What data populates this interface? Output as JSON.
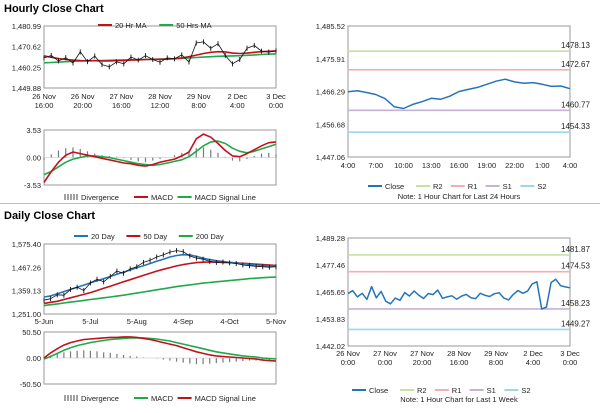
{
  "hourly": {
    "title": "Hourly Close Chart",
    "price_chart": {
      "type": "line",
      "ylim": [
        1449.88,
        1480.99
      ],
      "yticks": [
        "1,480.99",
        "1,470.62",
        "1,460.25",
        "1,449.88"
      ],
      "xticks": [
        [
          "26 Nov",
          "16:00"
        ],
        [
          "26 Nov",
          "20:00"
        ],
        [
          "27 Nov",
          "16:00"
        ],
        [
          "28 Nov",
          "12:00"
        ],
        [
          "29 Nov",
          "8:00"
        ],
        [
          "2 Dec",
          "4:00"
        ],
        [
          "3 Dec",
          "0:00"
        ]
      ],
      "legend": [
        "20 Hr MA",
        "50 Hrs MA"
      ],
      "series": [
        {
          "name": "Close",
          "values": [
            1465.0,
            1466.2,
            1463.5,
            1465.1,
            1462.4,
            1468.0,
            1463.1,
            1465.9,
            1461.6,
            1460.5,
            1463.0,
            1462.0,
            1465.4,
            1463.9,
            1466.1,
            1464.2,
            1462.8,
            1465.0,
            1464.5,
            1466.5,
            1462.9,
            1472.5,
            1473.0,
            1469.8,
            1472.1,
            1466.2,
            1462.0,
            1464.2,
            1469.8,
            1471.2,
            1468.4,
            1467.9,
            1468.5
          ]
        },
        {
          "name": "20 Hr MA",
          "values": [
            1466.0,
            1465.3,
            1464.7,
            1464.2,
            1463.9,
            1463.7,
            1463.6,
            1463.6,
            1463.5,
            1463.5,
            1463.6,
            1463.7,
            1463.9,
            1464.0,
            1464.2,
            1464.3,
            1464.3,
            1464.4,
            1464.6,
            1465.0,
            1465.6,
            1466.4,
            1467.2,
            1467.8,
            1468.1,
            1468.0,
            1467.4,
            1467.2,
            1467.4,
            1467.8,
            1468.1,
            1468.3,
            1468.5
          ]
        },
        {
          "name": "50 Hrs MA",
          "values": [
            1462.5,
            1462.7,
            1462.9,
            1463.1,
            1463.3,
            1463.4,
            1463.5,
            1463.6,
            1463.7,
            1463.8,
            1463.9,
            1464.0,
            1464.0,
            1464.1,
            1464.2,
            1464.3,
            1464.4,
            1464.5,
            1464.6,
            1464.8,
            1465.0,
            1465.2,
            1465.4,
            1465.6,
            1465.8,
            1465.9,
            1466.0,
            1466.1,
            1466.3,
            1466.5,
            1466.7,
            1466.9,
            1467.0
          ]
        }
      ]
    },
    "macd_chart": {
      "type": "line",
      "ylim": [
        -3.53,
        3.53
      ],
      "yticks": [
        "3.53",
        "0.00",
        "-3.53"
      ],
      "legend": [
        "Divergence",
        "MACD",
        "MACD Signal Line"
      ],
      "divergence": [
        -0.3,
        0.4,
        0.9,
        1.2,
        1.3,
        1.1,
        0.8,
        0.5,
        0.3,
        0.2,
        0.1,
        -0.1,
        -0.3,
        -0.5,
        -0.6,
        -0.4,
        -0.2,
        0.0,
        0.3,
        0.6,
        0.9,
        1.2,
        1.3,
        1.0,
        0.6,
        0.1,
        -0.4,
        -0.5,
        -0.2,
        0.2,
        0.5,
        0.6,
        0.4
      ],
      "macd": [
        -3.2,
        -1.8,
        -0.6,
        0.3,
        0.7,
        0.5,
        0.3,
        0.1,
        -0.1,
        -0.3,
        -0.5,
        -0.7,
        -0.8,
        -1.0,
        -1.1,
        -0.9,
        -0.6,
        -0.4,
        -0.2,
        0.2,
        0.7,
        2.4,
        3.0,
        2.6,
        1.8,
        0.9,
        0.2,
        0.1,
        0.5,
        1.0,
        1.5,
        1.9,
        2.0
      ],
      "signal": [
        -2.2,
        -1.8,
        -1.2,
        -0.6,
        -0.2,
        0.0,
        0.2,
        0.2,
        0.1,
        0.0,
        -0.2,
        -0.4,
        -0.6,
        -0.8,
        -0.9,
        -1.0,
        -0.9,
        -0.7,
        -0.5,
        -0.3,
        0.1,
        0.8,
        1.5,
        2.0,
        2.1,
        1.8,
        1.2,
        0.8,
        0.6,
        0.8,
        1.1,
        1.4,
        1.7
      ]
    },
    "pivot_chart": {
      "type": "line",
      "ylim": [
        1447.06,
        1485.52
      ],
      "yticks": [
        "1,485.52",
        "1,475.91",
        "1,466.29",
        "1,456.68",
        "1,447.06"
      ],
      "xticks": [
        "4:00",
        "7:00",
        "10:00",
        "13:00",
        "16:00",
        "19:00",
        "22:00",
        "1:00",
        "4:00"
      ],
      "levels": [
        {
          "name": "R2",
          "value": 1478.13,
          "label": "1478.13",
          "color": "#c9dfa5"
        },
        {
          "name": "R1",
          "value": 1472.67,
          "label": "1472.67",
          "color": "#f1b0b3"
        },
        {
          "name": "S1",
          "value": 1460.77,
          "label": "1460.77",
          "color": "#c7b1d6"
        },
        {
          "name": "S2",
          "value": 1454.33,
          "label": "1454.33",
          "color": "#9bd8ea"
        }
      ],
      "close": [
        1466.2,
        1466.5,
        1466.0,
        1465.4,
        1464.2,
        1461.8,
        1461.3,
        1462.5,
        1463.3,
        1464.3,
        1464.0,
        1464.9,
        1466.3,
        1466.9,
        1467.5,
        1468.4,
        1469.3,
        1469.9,
        1469.1,
        1468.7,
        1468.9,
        1468.4,
        1467.8,
        1467.9,
        1467.1
      ],
      "legend": [
        "Close",
        "R2",
        "R1",
        "S1",
        "S2"
      ],
      "note": "Note: 1 Hour Chart for Last 24 Hours"
    }
  },
  "daily": {
    "title": "Daily Close Chart",
    "price_chart": {
      "type": "line",
      "ylim": [
        1251.0,
        1575.4
      ],
      "yticks": [
        "1,575.40",
        "1,467.26",
        "1,359.13",
        "1,251.00"
      ],
      "xticks": [
        "5-Jun",
        "5-Jul",
        "5-Aug",
        "4-Sep",
        "4-Oct",
        "5-Nov"
      ],
      "legend": [
        "20 Day",
        "50 Day",
        "200 Day"
      ],
      "close": [
        1315,
        1322,
        1340,
        1338,
        1365,
        1375,
        1360,
        1395,
        1412,
        1400,
        1425,
        1450,
        1440,
        1460,
        1470,
        1490,
        1500,
        1515,
        1525,
        1538,
        1545,
        1540,
        1520,
        1510,
        1505,
        1495,
        1490,
        1492,
        1488,
        1485,
        1478,
        1475,
        1472,
        1470,
        1468,
        1470
      ],
      "ma20": [
        1330,
        1335,
        1345,
        1355,
        1365,
        1375,
        1385,
        1395,
        1405,
        1415,
        1425,
        1435,
        1445,
        1455,
        1465,
        1475,
        1485,
        1495,
        1505,
        1515,
        1522,
        1526,
        1525,
        1518,
        1510,
        1503,
        1498,
        1494,
        1490,
        1487,
        1484,
        1481,
        1478,
        1476,
        1474,
        1473
      ],
      "ma50": [
        1300,
        1305,
        1310,
        1318,
        1326,
        1334,
        1342,
        1350,
        1360,
        1370,
        1380,
        1390,
        1400,
        1410,
        1420,
        1430,
        1440,
        1450,
        1458,
        1466,
        1474,
        1480,
        1485,
        1489,
        1491,
        1492,
        1491,
        1490,
        1489,
        1488,
        1486,
        1484,
        1482,
        1480,
        1478,
        1476
      ],
      "ma200": [
        1290,
        1294,
        1298,
        1302,
        1306,
        1310,
        1314,
        1318,
        1322,
        1326,
        1330,
        1334,
        1338,
        1343,
        1348,
        1353,
        1358,
        1363,
        1368,
        1373,
        1378,
        1382,
        1386,
        1390,
        1394,
        1397,
        1400,
        1403,
        1406,
        1409,
        1412,
        1415,
        1417,
        1419,
        1421,
        1422
      ]
    },
    "macd_chart": {
      "type": "line",
      "ylim": [
        -50.5,
        50.5
      ],
      "yticks": [
        "50.50",
        "0.00",
        "-50.50"
      ],
      "legend": [
        "Divergence",
        "MACD",
        "MACD Signal Line"
      ],
      "divergence": [
        2,
        5,
        8,
        11,
        13,
        14,
        15,
        14,
        13,
        11,
        10,
        8,
        6,
        4,
        3,
        1,
        0,
        -1,
        -3,
        -5,
        -7,
        -9,
        -11,
        -12,
        -12,
        -11,
        -10,
        -9,
        -8,
        -7,
        -6,
        -5,
        -5,
        -4,
        -4,
        -3
      ],
      "macd": [
        0,
        10,
        18,
        25,
        30,
        33,
        36,
        37,
        38,
        39,
        40,
        40,
        41,
        41,
        40,
        38,
        36,
        33,
        30,
        27,
        24,
        20,
        16,
        12,
        9,
        6,
        4,
        3,
        2,
        1,
        0,
        -1,
        -2,
        -4,
        -5,
        -6
      ],
      "signal": [
        -2,
        3,
        9,
        15,
        20,
        24,
        27,
        30,
        32,
        34,
        36,
        37,
        38,
        39,
        39,
        39,
        38,
        37,
        35,
        33,
        30,
        27,
        24,
        21,
        18,
        15,
        12,
        10,
        8,
        6,
        4,
        3,
        2,
        0,
        -1,
        -2
      ]
    },
    "pivot_chart": {
      "type": "line",
      "ylim": [
        1442.02,
        1489.28
      ],
      "yticks": [
        "1,489.28",
        "1,477.46",
        "1,465.65",
        "1,453.83",
        "1,442.02"
      ],
      "xticks": [
        [
          "26 Nov",
          "0:00"
        ],
        [
          "27 Nov",
          "0:00"
        ],
        [
          "27 Nov",
          "20:00"
        ],
        [
          "28 Nov",
          "16:00"
        ],
        [
          "29 Nov",
          "8:00"
        ],
        [
          "2 Dec",
          "4:00"
        ],
        [
          "3 Dec",
          "0:00"
        ]
      ],
      "levels": [
        {
          "name": "R2",
          "value": 1481.87,
          "label": "1481.87",
          "color": "#c9dfa5"
        },
        {
          "name": "R1",
          "value": 1474.53,
          "label": "1474.53",
          "color": "#f1b0b3"
        },
        {
          "name": "S1",
          "value": 1458.23,
          "label": "1458.23",
          "color": "#c7b1d6"
        },
        {
          "name": "S2",
          "value": 1449.27,
          "label": "1449.27",
          "color": "#9bd8ea"
        }
      ],
      "close": [
        1465.0,
        1466.2,
        1463.5,
        1465.1,
        1462.4,
        1468.0,
        1463.1,
        1465.9,
        1461.6,
        1460.5,
        1463.0,
        1462.0,
        1465.4,
        1463.9,
        1466.1,
        1464.2,
        1462.8,
        1465.0,
        1464.5,
        1466.5,
        1462.9,
        1463.5,
        1464.0,
        1462.5,
        1463.8,
        1464.6,
        1463.2,
        1462.7,
        1465.1,
        1464.2,
        1463.7,
        1464.9,
        1465.3,
        1463.0,
        1462.2,
        1464.6,
        1466.3,
        1465.1,
        1466.0,
        1469.2,
        1470.1,
        1458.2,
        1459.0,
        1469.8,
        1471.2,
        1468.4,
        1467.9,
        1467.5
      ],
      "legend": [
        "Close",
        "R2",
        "R1",
        "S1",
        "S2"
      ],
      "note": "Note: 1 Hour Chart for Last 1 Week"
    }
  }
}
